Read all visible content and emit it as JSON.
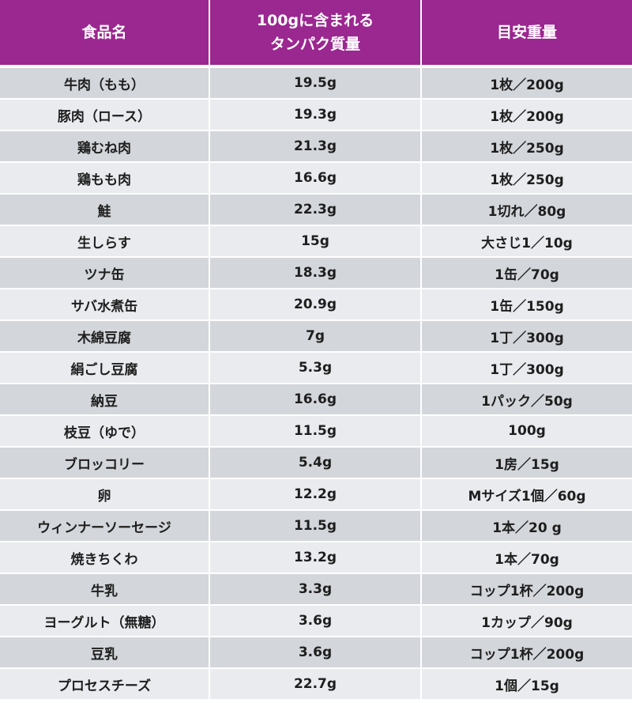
{
  "table": {
    "headers": {
      "food": "食品名",
      "protein_line1": "100gに含まれる",
      "protein_line2": "タンパク質量",
      "weight": "目安重量"
    },
    "rows": [
      {
        "food": "牛肉（もも）",
        "protein": "19.5g",
        "weight": "1枚／200g"
      },
      {
        "food": "豚肉（ロース）",
        "protein": "19.3g",
        "weight": "1枚／200g"
      },
      {
        "food": "鶏むね肉",
        "protein": "21.3g",
        "weight": "1枚／250g"
      },
      {
        "food": "鶏もも肉",
        "protein": "16.6g",
        "weight": "1枚／250g"
      },
      {
        "food": "鮭",
        "protein": "22.3g",
        "weight": "1切れ／80g"
      },
      {
        "food": "生しらす",
        "protein": "15g",
        "weight": "大さじ1／10g"
      },
      {
        "food": "ツナ缶",
        "protein": "18.3g",
        "weight": "1缶／70g"
      },
      {
        "food": "サバ水煮缶",
        "protein": "20.9g",
        "weight": "1缶／150g"
      },
      {
        "food": "木綿豆腐",
        "protein": "7g",
        "weight": "1丁／300g"
      },
      {
        "food": "絹ごし豆腐",
        "protein": "5.3g",
        "weight": "1丁／300g"
      },
      {
        "food": "納豆",
        "protein": "16.6g",
        "weight": "1パック／50g"
      },
      {
        "food": "枝豆（ゆで）",
        "protein": "11.5g",
        "weight": "100g"
      },
      {
        "food": "ブロッコリー",
        "protein": "5.4g",
        "weight": "1房／15g"
      },
      {
        "food": "卵",
        "protein": "12.2g",
        "weight": "Mサイズ1個／60g"
      },
      {
        "food": "ウィンナーソーセージ",
        "protein": "11.5g",
        "weight": "1本／20 g"
      },
      {
        "food": "焼きちくわ",
        "protein": "13.2g",
        "weight": "1本／70g"
      },
      {
        "food": "牛乳",
        "protein": "3.3g",
        "weight": "コップ1杯／200g"
      },
      {
        "food": "ヨーグルト（無糖）",
        "protein": "3.6g",
        "weight": "1カップ／90g"
      },
      {
        "food": "豆乳",
        "protein": "3.6g",
        "weight": "コップ1杯／200g"
      },
      {
        "food": "プロセスチーズ",
        "protein": "22.7g",
        "weight": "1個／15g"
      }
    ]
  },
  "colors": {
    "header_bg": "#9b2790",
    "row_dark": "#d3d6da",
    "row_light": "#e9ebee"
  }
}
